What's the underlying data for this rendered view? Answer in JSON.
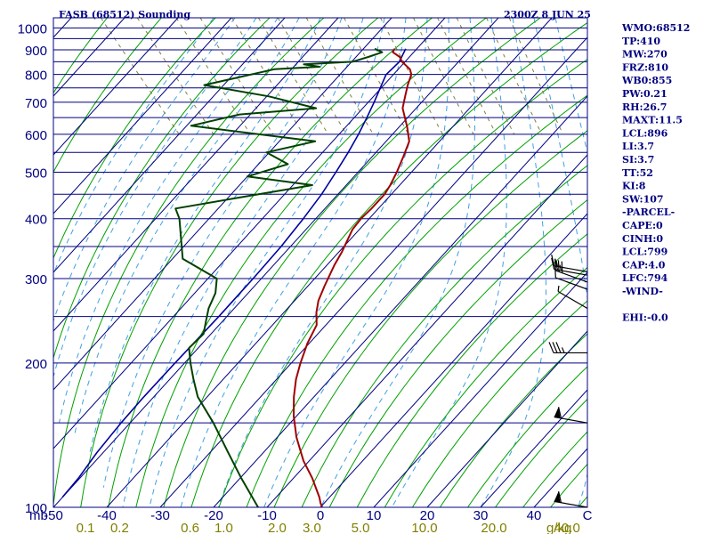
{
  "header": {
    "station": "FASB (68512) Sounding",
    "valid_time": "2300Z  8 JUN 25"
  },
  "indices": [
    "WMO:68512",
    "TP:410",
    "MW:270",
    "FRZ:810",
    "WB0:855",
    "PW:0.21",
    "RH:26.7",
    "MAXT:11.5",
    "LCL:896",
    "LI:3.7",
    "SI:3.7",
    "TT:52",
    "KI:8",
    "SW:107",
    "-PARCEL-",
    "CAPE:0",
    "CINH:0",
    "LCL:799",
    "CAP:4.0",
    "LFC:794",
    "-WIND-",
    "",
    "EHI:-0.0"
  ],
  "colors": {
    "isobar": "#000080",
    "isotherm": "#000080",
    "dry_adiabat": "#00a000",
    "moist_adiabat": "#40a0e0",
    "mixing_ratio": "#808040",
    "temperature": "#a00000",
    "dewpoint": "#004000",
    "parcel": "#0000a0"
  },
  "chart_data": {
    "type": "line",
    "title": "FASB (68512) Sounding",
    "subtitle": "2300Z  8 JUN 25",
    "y_unit": "mb",
    "mixing_ratio_unit": "g/kg",
    "y_scale": "log-pressure",
    "ylim": [
      1050,
      100
    ],
    "xlim": [
      -50,
      50
    ],
    "y_ticks": [
      100,
      200,
      300,
      400,
      500,
      600,
      700,
      800,
      900,
      1000
    ],
    "x_ticks": [
      -50,
      -40,
      -30,
      -20,
      -10,
      0,
      10,
      20,
      30,
      40,
      50
    ],
    "x_tick_labels": [
      "-50",
      "-40",
      "-30",
      "-20",
      "-10",
      "0",
      "10",
      "20",
      "30",
      "40",
      "C"
    ],
    "mixing_ratio_labels": [
      {
        "label": "0.1",
        "value": -44
      },
      {
        "label": "0.2",
        "value": -37.6
      },
      {
        "label": "0.6",
        "value": -24.4
      },
      {
        "label": "1.0",
        "value": -18.1
      },
      {
        "label": "2.0",
        "value": -8.1
      },
      {
        "label": "3.0",
        "value": -1.6
      },
      {
        "label": "5.0",
        "value": 7.5
      },
      {
        "label": "10.0",
        "value": 19.5
      },
      {
        "label": "20.0",
        "value": 32.5
      },
      {
        "label": "40.0",
        "value": 46.2
      }
    ],
    "series": [
      {
        "key": "temperature",
        "points": [
          [
            905,
            8.6
          ],
          [
            890,
            7.7
          ],
          [
            870,
            8.2
          ],
          [
            850,
            7.8
          ],
          [
            820,
            8.0
          ],
          [
            800,
            7.4
          ],
          [
            760,
            4.9
          ],
          [
            720,
            2.5
          ],
          [
            680,
            0.0
          ],
          [
            620,
            -2.4
          ],
          [
            580,
            -4.4
          ],
          [
            540,
            -8.0
          ],
          [
            500,
            -12.0
          ],
          [
            470,
            -15.4
          ],
          [
            450,
            -18.0
          ],
          [
            420,
            -22.9
          ],
          [
            400,
            -26.6
          ],
          [
            380,
            -30.0
          ],
          [
            340,
            -36.0
          ],
          [
            320,
            -39.5
          ],
          [
            290,
            -44.8
          ],
          [
            270,
            -48.5
          ],
          [
            255,
            -50.9
          ],
          [
            240,
            -53.0
          ],
          [
            220,
            -57.8
          ],
          [
            200,
            -62.5
          ],
          [
            185,
            -66.1
          ],
          [
            170,
            -69.5
          ],
          [
            155,
            -72.8
          ],
          [
            140,
            -75.9
          ],
          [
            125,
            -78.6
          ],
          [
            115,
            -79.9
          ],
          [
            105,
            -81.8
          ],
          [
            102,
            -82.6
          ],
          [
            100,
            -83.0
          ]
        ]
      },
      {
        "key": "dewpoint",
        "points": [
          [
            905,
            4.9
          ],
          [
            890,
            5.7
          ],
          [
            870,
            2.3
          ],
          [
            850,
            -1.5
          ],
          [
            840,
            -11.0
          ],
          [
            830,
            -8.5
          ],
          [
            820,
            -17.4
          ],
          [
            760,
            -33.2
          ],
          [
            720,
            -23.0
          ],
          [
            680,
            -16.2
          ],
          [
            660,
            -31.6
          ],
          [
            625,
            -42.6
          ],
          [
            580,
            -22.0
          ],
          [
            550,
            -33.0
          ],
          [
            520,
            -31.0
          ],
          [
            490,
            -40.7
          ],
          [
            470,
            -30.0
          ],
          [
            440,
            -47.4
          ],
          [
            420,
            -59.6
          ],
          [
            400,
            -60.6
          ],
          [
            360,
            -64.0
          ],
          [
            330,
            -66.8
          ],
          [
            300,
            -63.8
          ],
          [
            280,
            -66.5
          ],
          [
            260,
            -70.4
          ],
          [
            245,
            -73.0
          ],
          [
            230,
            -75.7
          ],
          [
            215,
            -80.8
          ],
          [
            200,
            -83.1
          ],
          [
            185,
            -85.3
          ],
          [
            170,
            -87.5
          ],
          [
            150,
            -89.0
          ],
          [
            130,
            -91.3
          ],
          [
            115,
            -93.2
          ],
          [
            100,
            -95.0
          ]
        ]
      },
      {
        "key": "parcel",
        "points": [
          [
            905,
            10.7
          ],
          [
            850,
            7.3
          ],
          [
            799,
            2.6
          ],
          [
            750,
            -0.7
          ],
          [
            700,
            -4.3
          ],
          [
            650,
            -8.3
          ],
          [
            600,
            -12.7
          ],
          [
            550,
            -17.7
          ],
          [
            500,
            -23.4
          ],
          [
            450,
            -29.8
          ],
          [
            400,
            -37.4
          ],
          [
            350,
            -46.3
          ],
          [
            300,
            -57.0
          ],
          [
            250,
            -69.9
          ],
          [
            200,
            -86.0
          ],
          [
            170,
            -97.6
          ],
          [
            150,
            -106.3
          ],
          [
            130,
            -115.9
          ],
          [
            115,
            -123.7
          ],
          [
            105,
            -129.9
          ]
        ]
      }
    ],
    "wind_barbs": [
      {
        "pressure": 100,
        "direction": 280,
        "speed_kt": 60
      },
      {
        "pressure": 150,
        "direction": 280,
        "speed_kt": 60
      },
      {
        "pressure": 210,
        "direction": 270,
        "speed_kt": 35
      },
      {
        "pressure": 260,
        "direction": 300,
        "speed_kt": 5
      },
      {
        "pressure": 285,
        "direction": 290,
        "speed_kt": 10
      },
      {
        "pressure": 295,
        "direction": 290,
        "speed_kt": 30
      },
      {
        "pressure": 305,
        "direction": 280,
        "speed_kt": 25
      },
      {
        "pressure": 310,
        "direction": 280,
        "speed_kt": 15
      }
    ]
  }
}
